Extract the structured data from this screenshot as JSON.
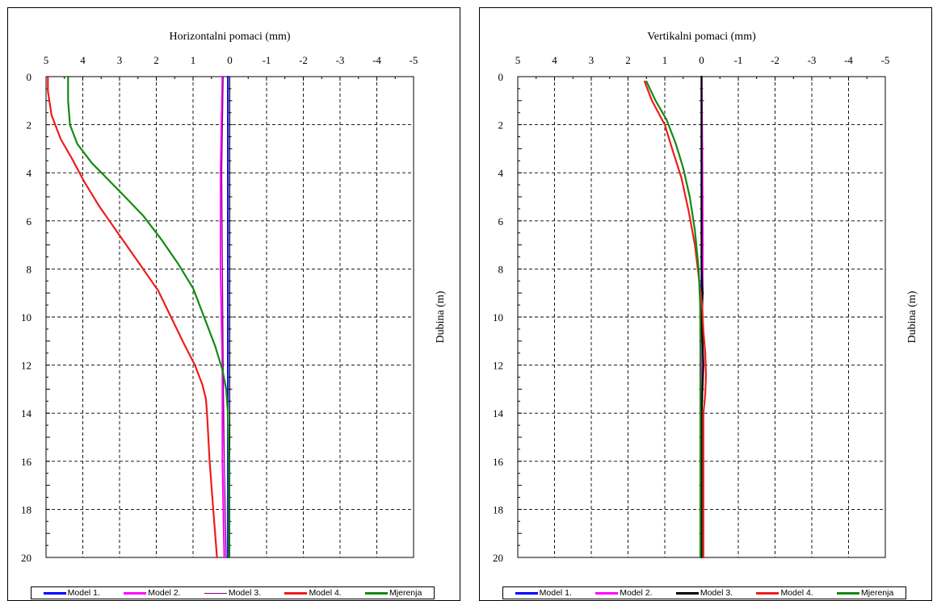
{
  "chart_data": [
    {
      "type": "line",
      "title": "Horizontalni pomaci (mm)",
      "xlabel": "Horizontalni pomaci (mm)",
      "ylabel": "Dubina (m)",
      "xlim": [
        5,
        -5
      ],
      "ylim": [
        0,
        20
      ],
      "x_ticks": [
        "5",
        "4",
        "3",
        "2",
        "1",
        "0",
        "-1",
        "-2",
        "-3",
        "-4",
        "-5"
      ],
      "y_ticks": [
        "0",
        "2",
        "4",
        "6",
        "8",
        "10",
        "12",
        "14",
        "16",
        "18",
        "20"
      ],
      "x_direction": "reversed",
      "y_direction": "downward",
      "grid": true,
      "legend_position": "bottom",
      "series": [
        {
          "name": "Model 1.",
          "color": "#0000ff",
          "points": [
            [
              0.05,
              0
            ],
            [
              0.05,
              4
            ],
            [
              0.05,
              8
            ],
            [
              0.05,
              12
            ],
            [
              0.05,
              16
            ],
            [
              0.05,
              20
            ]
          ]
        },
        {
          "name": "Model 2.",
          "color": "#ff00ff",
          "points": [
            [
              0.2,
              0
            ],
            [
              0.25,
              4
            ],
            [
              0.25,
              8
            ],
            [
              0.2,
              12
            ],
            [
              0.2,
              16
            ],
            [
              0.15,
              20
            ]
          ]
        },
        {
          "name": "Model 3.",
          "color": "#7f007f",
          "points": [
            [
              0.18,
              0
            ],
            [
              0.22,
              4
            ],
            [
              0.2,
              8
            ],
            [
              0.18,
              12
            ],
            [
              0.15,
              16
            ],
            [
              0.1,
              20
            ]
          ]
        },
        {
          "name": "Model 4.",
          "color": "#ee1c1c",
          "points": [
            [
              4.95,
              0
            ],
            [
              4.95,
              0.6
            ],
            [
              4.85,
              1.6
            ],
            [
              4.6,
              2.6
            ],
            [
              4.3,
              3.4
            ],
            [
              3.95,
              4.4
            ],
            [
              3.55,
              5.4
            ],
            [
              3.0,
              6.6
            ],
            [
              2.45,
              7.8
            ],
            [
              1.95,
              8.9
            ],
            [
              1.6,
              10
            ],
            [
              1.25,
              11.1
            ],
            [
              0.95,
              12
            ],
            [
              0.75,
              12.8
            ],
            [
              0.65,
              13.4
            ],
            [
              0.62,
              14
            ],
            [
              0.55,
              16
            ],
            [
              0.45,
              18
            ],
            [
              0.35,
              20
            ]
          ]
        },
        {
          "name": "Mjerenja",
          "color": "#128a12",
          "points": [
            [
              4.4,
              0
            ],
            [
              4.4,
              1.0
            ],
            [
              4.35,
              2.0
            ],
            [
              4.15,
              2.8
            ],
            [
              3.75,
              3.6
            ],
            [
              3.3,
              4.3
            ],
            [
              2.85,
              5.0
            ],
            [
              2.35,
              5.8
            ],
            [
              1.85,
              6.8
            ],
            [
              1.4,
              7.8
            ],
            [
              1.0,
              8.8
            ],
            [
              0.7,
              10
            ],
            [
              0.4,
              11.2
            ],
            [
              0.2,
              12.2
            ],
            [
              0.1,
              13
            ],
            [
              0.05,
              14
            ],
            [
              0.02,
              16
            ],
            [
              0.02,
              18
            ],
            [
              0.02,
              20
            ]
          ]
        }
      ]
    },
    {
      "type": "line",
      "title": "Vertikalni pomaci (mm)",
      "xlabel": "Vertikalni pomaci (mm)",
      "ylabel": "Dubina (m)",
      "xlim": [
        5,
        -5
      ],
      "ylim": [
        0,
        20
      ],
      "x_ticks": [
        "5",
        "4",
        "3",
        "2",
        "1",
        "0",
        "-1",
        "-2",
        "-3",
        "-4",
        "-5"
      ],
      "y_ticks": [
        "0",
        "2",
        "4",
        "6",
        "8",
        "10",
        "12",
        "14",
        "16",
        "18",
        "20"
      ],
      "x_direction": "reversed",
      "y_direction": "downward",
      "grid": true,
      "legend_position": "bottom",
      "series": [
        {
          "name": "Model 1.",
          "color": "#0000ff",
          "points": [
            [
              0.0,
              0
            ],
            [
              0.0,
              5
            ],
            [
              0.0,
              10
            ],
            [
              0.0,
              15
            ],
            [
              0.0,
              20
            ]
          ]
        },
        {
          "name": "Model 2.",
          "color": "#ff00ff",
          "points": [
            [
              0.0,
              0
            ],
            [
              -0.02,
              3
            ],
            [
              -0.03,
              6
            ],
            [
              -0.03,
              8
            ],
            [
              -0.02,
              10
            ],
            [
              0.0,
              14
            ],
            [
              0.0,
              20
            ]
          ]
        },
        {
          "name": "Model 3.",
          "color": "#000000",
          "points": [
            [
              0.0,
              0
            ],
            [
              0.0,
              4
            ],
            [
              0.0,
              8
            ],
            [
              -0.03,
              9
            ],
            [
              0.0,
              10
            ],
            [
              -0.05,
              12
            ],
            [
              0.0,
              14
            ],
            [
              0.0,
              16
            ],
            [
              0.0,
              20
            ]
          ]
        },
        {
          "name": "Model 4.",
          "color": "#ee1c1c",
          "points": [
            [
              1.55,
              0.2
            ],
            [
              1.35,
              1.0
            ],
            [
              1.0,
              2.0
            ],
            [
              0.8,
              3.0
            ],
            [
              0.55,
              4.2
            ],
            [
              0.35,
              5.6
            ],
            [
              0.18,
              7.0
            ],
            [
              0.07,
              8.4
            ],
            [
              -0.02,
              9.6
            ],
            [
              -0.05,
              10.6
            ],
            [
              -0.1,
              11.5
            ],
            [
              -0.12,
              12.4
            ],
            [
              -0.1,
              13.2
            ],
            [
              -0.05,
              14
            ],
            [
              -0.05,
              16
            ],
            [
              -0.05,
              18
            ],
            [
              -0.05,
              20
            ]
          ]
        },
        {
          "name": "Mjerenja",
          "color": "#128a12",
          "points": [
            [
              1.5,
              0.2
            ],
            [
              1.25,
              1.0
            ],
            [
              0.95,
              1.8
            ],
            [
              0.7,
              2.8
            ],
            [
              0.5,
              3.8
            ],
            [
              0.32,
              5.0
            ],
            [
              0.18,
              6.4
            ],
            [
              0.08,
              8.0
            ],
            [
              0.04,
              9.4
            ],
            [
              0.03,
              11
            ],
            [
              0.03,
              13
            ],
            [
              0.03,
              16
            ],
            [
              0.03,
              18
            ],
            [
              0.03,
              20
            ]
          ]
        }
      ]
    }
  ],
  "legend": [
    {
      "label": "Model 1.",
      "color": "#0000ff"
    },
    {
      "label": "Model 2.",
      "color": "#ff00ff"
    },
    {
      "label": "Model 3.",
      "color": "#7f007f"
    },
    {
      "label": "Model 4.",
      "color": "#ee1c1c"
    },
    {
      "label": "Mjerenja",
      "color": "#128a12"
    }
  ],
  "legend_right": [
    {
      "label": "Model 1.",
      "color": "#0000ff"
    },
    {
      "label": "Model 2.",
      "color": "#ff00ff"
    },
    {
      "label": "Model 3.",
      "color": "#000000"
    },
    {
      "label": "Model 4.",
      "color": "#ee1c1c"
    },
    {
      "label": "Mjerenja",
      "color": "#128a12"
    }
  ]
}
